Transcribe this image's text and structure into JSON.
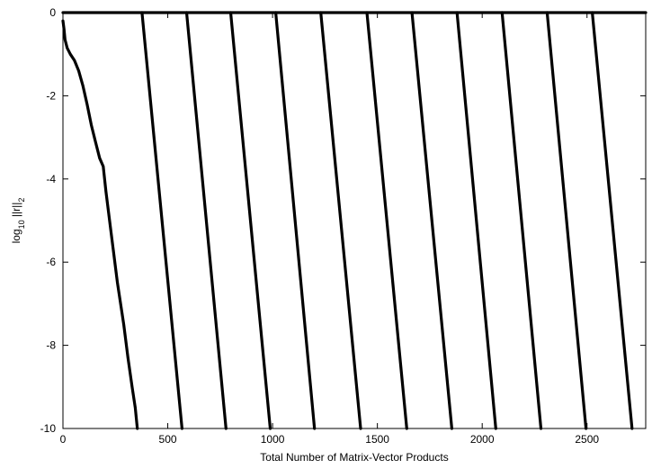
{
  "chart_data": {
    "type": "line",
    "title": "",
    "xlabel": "Total Number of Matrix-Vector Products",
    "ylabel": {
      "base": "log",
      "sub": "10",
      "mid": " ||r||",
      "sub2": "2"
    },
    "xlim": [
      0,
      2780
    ],
    "ylim": [
      -10,
      0
    ],
    "x_ticks": [
      0,
      500,
      1000,
      1500,
      2000,
      2500
    ],
    "y_ticks": [
      0,
      -2,
      -4,
      -6,
      -8,
      -10
    ],
    "x_tick_labels": [
      "0",
      "500",
      "1000",
      "1500",
      "2000",
      "2500"
    ],
    "y_tick_labels": [
      "0",
      "-2",
      "-4",
      "-6",
      "-8",
      "-10"
    ],
    "grid": false,
    "legend": "none",
    "color": "#000000",
    "series": [
      {
        "x": [
          0,
          5,
          10,
          20,
          35,
          55,
          75,
          95,
          115,
          135,
          155,
          175,
          192,
          205,
          230,
          260,
          290,
          310,
          330,
          345,
          355
        ],
        "y": [
          -0.2,
          -0.4,
          -0.65,
          -0.85,
          -1.0,
          -1.15,
          -1.4,
          -1.75,
          -2.2,
          -2.7,
          -3.1,
          -3.5,
          -3.7,
          -4.3,
          -5.3,
          -6.5,
          -7.5,
          -8.3,
          -9.0,
          -9.5,
          -10.0
        ]
      },
      {
        "x": [
          0,
          2780
        ],
        "y": [
          0,
          0
        ]
      },
      {
        "x": [
          377,
          568
        ],
        "y": [
          0,
          -10
        ]
      },
      {
        "x": [
          590,
          778
        ],
        "y": [
          0,
          -10
        ]
      },
      {
        "x": [
          800,
          989
        ],
        "y": [
          0,
          -10
        ]
      },
      {
        "x": [
          1015,
          1200
        ],
        "y": [
          0,
          -10
        ]
      },
      {
        "x": [
          1230,
          1420
        ],
        "y": [
          0,
          -10
        ]
      },
      {
        "x": [
          1450,
          1640
        ],
        "y": [
          0,
          -10
        ]
      },
      {
        "x": [
          1665,
          1855
        ],
        "y": [
          0,
          -10
        ]
      },
      {
        "x": [
          1880,
          2065
        ],
        "y": [
          0,
          -10
        ]
      },
      {
        "x": [
          2095,
          2280
        ],
        "y": [
          0,
          -10
        ]
      },
      {
        "x": [
          2310,
          2495
        ],
        "y": [
          0,
          -10
        ]
      },
      {
        "x": [
          2525,
          2715
        ],
        "y": [
          0,
          -10
        ]
      }
    ]
  }
}
